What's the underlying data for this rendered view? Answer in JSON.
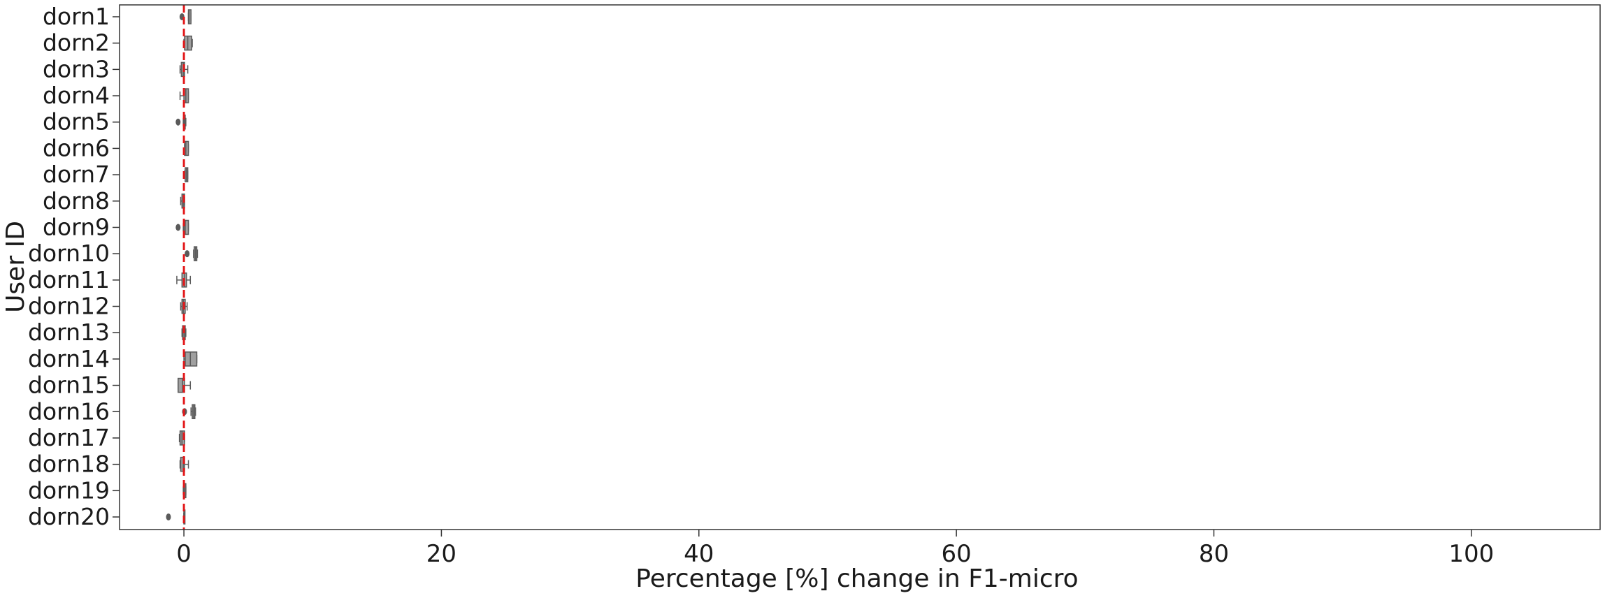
{
  "chart_data": {
    "type": "boxplot",
    "orientation": "horizontal",
    "xlabel": "Percentage [%] change in F1-micro",
    "ylabel": "User ID",
    "xlim": [
      -5,
      110
    ],
    "xticks": [
      0,
      20,
      40,
      60,
      80,
      100
    ],
    "grid": false,
    "reference_line": {
      "x": 0,
      "color": "#e31a1c",
      "style": "dashed"
    },
    "box_color": "#a0a0a0",
    "categories": [
      "dorn1",
      "dorn2",
      "dorn3",
      "dorn4",
      "dorn5",
      "dorn6",
      "dorn7",
      "dorn8",
      "dorn9",
      "dorn10",
      "dorn11",
      "dorn12",
      "dorn13",
      "dorn14",
      "dorn15",
      "dorn16",
      "dorn17",
      "dorn18",
      "dorn19",
      "dorn20"
    ],
    "boxes": [
      {
        "whislo": 0.35,
        "q1": 0.35,
        "med": 0.4,
        "q3": 0.55,
        "whishi": 0.55,
        "fliers": [
          -0.15
        ]
      },
      {
        "whislo": 0.0,
        "q1": 0.05,
        "med": 0.3,
        "q3": 0.6,
        "whishi": 0.65,
        "fliers": []
      },
      {
        "whislo": -0.3,
        "q1": -0.2,
        "med": -0.05,
        "q3": 0.05,
        "whishi": 0.3,
        "fliers": []
      },
      {
        "whislo": -0.3,
        "q1": 0.0,
        "med": 0.15,
        "q3": 0.35,
        "whishi": 0.35,
        "fliers": []
      },
      {
        "whislo": -0.05,
        "q1": 0.0,
        "med": 0.05,
        "q3": 0.1,
        "whishi": 0.15,
        "fliers": [
          -0.45
        ]
      },
      {
        "whislo": 0.05,
        "q1": 0.05,
        "med": 0.15,
        "q3": 0.35,
        "whishi": 0.35,
        "fliers": []
      },
      {
        "whislo": 0.05,
        "q1": 0.1,
        "med": 0.2,
        "q3": 0.3,
        "whishi": 0.3,
        "fliers": []
      },
      {
        "whislo": -0.25,
        "q1": -0.15,
        "med": -0.05,
        "q3": 0.05,
        "whishi": 0.05,
        "fliers": []
      },
      {
        "whislo": -0.05,
        "q1": 0.0,
        "med": 0.1,
        "q3": 0.35,
        "whishi": 0.35,
        "fliers": [
          -0.45
        ]
      },
      {
        "whislo": 0.75,
        "q1": 0.8,
        "med": 0.9,
        "q3": 1.0,
        "whishi": 1.05,
        "fliers": [
          0.25
        ]
      },
      {
        "whislo": -0.55,
        "q1": -0.15,
        "med": 0.05,
        "q3": 0.2,
        "whishi": 0.5,
        "fliers": []
      },
      {
        "whislo": -0.25,
        "q1": -0.15,
        "med": -0.05,
        "q3": 0.1,
        "whishi": 0.25,
        "fliers": []
      },
      {
        "whislo": -0.15,
        "q1": -0.1,
        "med": 0.0,
        "q3": 0.1,
        "whishi": 0.15,
        "fliers": []
      },
      {
        "whislo": 0.0,
        "q1": 0.1,
        "med": 0.5,
        "q3": 1.0,
        "whishi": 1.0,
        "fliers": []
      },
      {
        "whislo": -0.45,
        "q1": -0.45,
        "med": -0.1,
        "q3": 0.05,
        "whishi": 0.5,
        "fliers": []
      },
      {
        "whislo": 0.55,
        "q1": 0.65,
        "med": 0.75,
        "q3": 0.85,
        "whishi": 0.9,
        "fliers": [
          0.05
        ]
      },
      {
        "whislo": -0.35,
        "q1": -0.3,
        "med": -0.15,
        "q3": 0.05,
        "whishi": 0.05,
        "fliers": []
      },
      {
        "whislo": -0.3,
        "q1": -0.25,
        "med": -0.05,
        "q3": 0.05,
        "whishi": 0.35,
        "fliers": []
      },
      {
        "whislo": -0.05,
        "q1": 0.0,
        "med": 0.05,
        "q3": 0.15,
        "whishi": 0.15,
        "fliers": []
      },
      {
        "whislo": 0.0,
        "q1": 0.0,
        "med": 0.0,
        "q3": 0.0,
        "whishi": 0.0,
        "fliers": [
          -1.2
        ]
      }
    ]
  }
}
